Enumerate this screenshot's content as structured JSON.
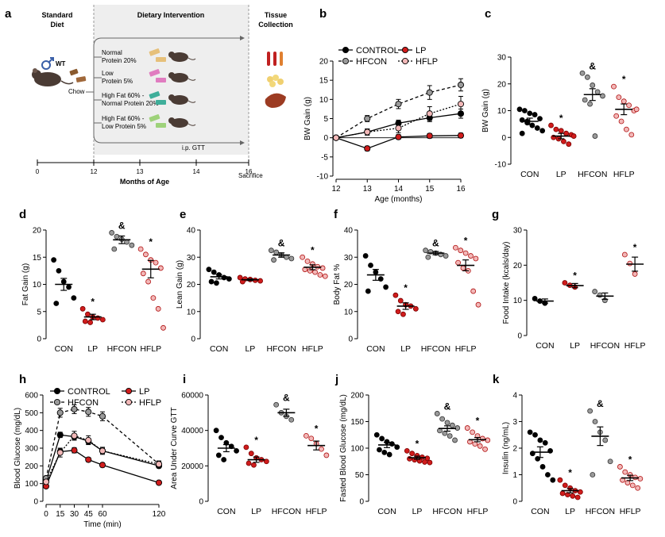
{
  "panel_letters": [
    "a",
    "b",
    "c",
    "d",
    "e",
    "f",
    "g",
    "h",
    "i",
    "j",
    "k"
  ],
  "schematic": {
    "header_standard": [
      "Standard",
      "Diet"
    ],
    "header_diet": "Dietary Intervention",
    "header_tissue": [
      "Tissue",
      "Collection"
    ],
    "wt_label": "WT",
    "chow_label": "Chow",
    "diets": [
      {
        "line1": "Normal",
        "line2": "Protein 20%",
        "color": "#e6c07a"
      },
      {
        "line1": "Low",
        "line2": "Protein 5%",
        "color": "#e07cc0"
      },
      {
        "line1": "High Fat  60% -",
        "line2": "Normal Protein 20%",
        "color": "#3fae9a"
      },
      {
        "line1": "High Fat 60% -",
        "line2": "Low Protein 5%",
        "color": "#9ed27a"
      }
    ],
    "gtt_label": "i.p. GTT",
    "timeline_ticks": [
      "0",
      "12",
      "13",
      "14",
      "16"
    ],
    "sacrifice_label": "Sacrifice",
    "axis_title": "Months of Age"
  },
  "colors": {
    "control": "#000000",
    "lp": "#d01c1c",
    "hfcon": "#9a9a9a",
    "hflp": "#f2b8b8"
  },
  "chart_data": [
    {
      "id": "b",
      "type": "line",
      "xlabel": "Age (months)",
      "ylabel": "BW Gain  (g)",
      "x": [
        12,
        13,
        14,
        15,
        16
      ],
      "xticks": [
        "12",
        "13",
        "14",
        "15",
        "16"
      ],
      "ylim": [
        -10,
        20
      ],
      "yticks": [
        "-10",
        "-5",
        "0",
        "5",
        "10",
        "15",
        "20"
      ],
      "legend": [
        "CONTROL",
        "LP",
        "HFCON",
        "HFLP"
      ],
      "series": [
        {
          "name": "CONTROL",
          "values": [
            0,
            1.5,
            3.8,
            5.2,
            6.3
          ],
          "err": [
            0.3,
            0.8,
            0.8,
            1.0,
            1.2
          ]
        },
        {
          "name": "LP",
          "values": [
            0,
            -2.8,
            0.2,
            0.5,
            0.6
          ],
          "err": [
            0.3,
            0.6,
            0.6,
            0.6,
            0.6
          ]
        },
        {
          "name": "HFCON",
          "values": [
            0,
            5.0,
            8.8,
            11.8,
            13.8
          ],
          "err": [
            0.3,
            0.8,
            1.2,
            1.8,
            1.6
          ]
        },
        {
          "name": "HFLP",
          "values": [
            0,
            1.5,
            2.5,
            6.3,
            8.8
          ],
          "err": [
            0.3,
            0.8,
            1.2,
            1.8,
            2.0
          ]
        }
      ]
    },
    {
      "id": "c",
      "type": "scatter",
      "ylabel": "BW Gain  (g)",
      "ylim": [
        -10,
        30
      ],
      "yticks": [
        "-10",
        "0",
        "10",
        "20",
        "30"
      ],
      "categories": [
        "CON",
        "LP",
        "HFCON",
        "HFLP"
      ],
      "means": [
        6.0,
        0.5,
        16.0,
        10.5
      ],
      "sem": [
        1.2,
        1.0,
        2.2,
        2.0
      ],
      "points": [
        [
          10.5,
          10.0,
          9.0,
          8.5,
          7.0,
          6.5,
          5.5,
          4.5,
          3.5,
          2.5,
          1.5,
          6.0
        ],
        [
          4.5,
          3.0,
          2.5,
          1.5,
          1.0,
          0.0,
          -0.5,
          -1.5,
          -2.5,
          0.5
        ],
        [
          24.0,
          22.5,
          19.5,
          17.0,
          15.5,
          14.0,
          12.5,
          0.5
        ],
        [
          19.0,
          15.0,
          13.5,
          12.0,
          10.0,
          8.0,
          6.0,
          3.0,
          1.0,
          10.5
        ]
      ],
      "sig": [
        "",
        "*",
        "&",
        "*"
      ]
    },
    {
      "id": "d",
      "type": "scatter",
      "ylabel": "Fat Gain  (g)",
      "ylim": [
        0,
        20
      ],
      "yticks": [
        "0",
        "5",
        "10",
        "15",
        "20"
      ],
      "categories": [
        "CON",
        "LP",
        "HFCON",
        "HFLP"
      ],
      "means": [
        10.0,
        4.0,
        18.2,
        12.8
      ],
      "sem": [
        1.1,
        0.5,
        0.7,
        1.6
      ],
      "points": [
        [
          14.5,
          12.5,
          10.5,
          9.5,
          7.5,
          6.5
        ],
        [
          5.5,
          4.5,
          4.0,
          3.8,
          3.5,
          3.2,
          3.0
        ],
        [
          19.5,
          18.8,
          18.3,
          17.8,
          17.2,
          16.5
        ],
        [
          16.5,
          15.5,
          14.5,
          14.0,
          13.0,
          12.0,
          10.5,
          7.5,
          5.5,
          2.0
        ]
      ],
      "sig": [
        "",
        "*",
        "&",
        "*"
      ]
    },
    {
      "id": "e",
      "type": "scatter",
      "ylabel": "Lean Gain  (g)",
      "ylim": [
        0,
        40
      ],
      "yticks": [
        "0",
        "10",
        "20",
        "30",
        "40"
      ],
      "categories": [
        "CON",
        "LP",
        "HFCON",
        "HFLP"
      ],
      "means": [
        22.8,
        21.7,
        30.8,
        26.3
      ],
      "sem": [
        0.8,
        0.3,
        0.8,
        0.9
      ],
      "points": [
        [
          25.5,
          24.5,
          23.5,
          22.5,
          22.0,
          21.0,
          20.5
        ],
        [
          22.5,
          22.0,
          21.8,
          21.5,
          21.3,
          21.0
        ],
        [
          32.5,
          31.8,
          30.8,
          30.0,
          29.5,
          29.0
        ],
        [
          30.0,
          28.5,
          27.5,
          26.5,
          26.0,
          25.5,
          25.0,
          24.5,
          23.5,
          23.0
        ]
      ],
      "sig": [
        "",
        "",
        "&",
        "*"
      ]
    },
    {
      "id": "f",
      "type": "scatter",
      "ylabel": "Body Fat %",
      "ylim": [
        0,
        40
      ],
      "yticks": [
        "0",
        "10",
        "20",
        "30",
        "40"
      ],
      "categories": [
        "CON",
        "LP",
        "HFCON",
        "HFLP"
      ],
      "means": [
        23.5,
        12.0,
        31.5,
        27.0
      ],
      "sem": [
        2.0,
        1.2,
        0.6,
        2.0
      ],
      "points": [
        [
          30.5,
          27.0,
          24.5,
          22.0,
          19.0,
          17.5
        ],
        [
          16.0,
          14.0,
          12.5,
          12.0,
          11.0,
          10.0,
          9.0
        ],
        [
          32.5,
          32.0,
          31.5,
          31.0,
          30.5,
          30.0
        ],
        [
          33.5,
          32.5,
          31.5,
          30.5,
          29.5,
          28.0,
          26.0,
          25.0,
          17.5,
          12.5
        ]
      ],
      "sig": [
        "",
        "*",
        "&",
        "*"
      ]
    },
    {
      "id": "g",
      "type": "scatter",
      "ylabel": "Food Intake (kcals/day)",
      "ylim": [
        0,
        30
      ],
      "yticks": [
        "0",
        "10",
        "20",
        "30"
      ],
      "categories": [
        "CON",
        "LP",
        "HFCON",
        "HFLP"
      ],
      "means": [
        9.8,
        14.2,
        11.2,
        20.3
      ],
      "sem": [
        0.6,
        0.6,
        0.9,
        2.0
      ],
      "points": [
        [
          10.5,
          9.8,
          9.2
        ],
        [
          15.0,
          14.3,
          13.8
        ],
        [
          12.5,
          11.5,
          10.0
        ],
        [
          23.0,
          20.5,
          17.5
        ]
      ],
      "sig": [
        "",
        "*",
        "",
        "*"
      ]
    },
    {
      "id": "h",
      "type": "line",
      "xlabel": "Time (min)",
      "ylabel": "Blood Glucose (mg/dL)",
      "x": [
        0,
        15,
        30,
        45,
        60,
        120
      ],
      "xticks": [
        "0",
        "15",
        "30",
        "45",
        "60",
        "120"
      ],
      "ylim": [
        0,
        600
      ],
      "yticks": [
        "0",
        "100",
        "200",
        "300",
        "400",
        "500",
        "600"
      ],
      "legend": [
        "CONTROL",
        "LP",
        "HFCON",
        "HFLP"
      ],
      "series": [
        {
          "name": "CONTROL",
          "values": [
            115,
            375,
            365,
            340,
            285,
            200
          ],
          "err": [
            10,
            15,
            15,
            15,
            15,
            12
          ]
        },
        {
          "name": "LP",
          "values": [
            85,
            280,
            288,
            235,
            205,
            105
          ],
          "err": [
            8,
            15,
            15,
            12,
            12,
            8
          ]
        },
        {
          "name": "HFCON",
          "values": [
            130,
            500,
            520,
            505,
            480,
            210
          ],
          "err": [
            12,
            25,
            25,
            25,
            25,
            18
          ]
        },
        {
          "name": "HFLP",
          "values": [
            110,
            275,
            370,
            345,
            285,
            210
          ],
          "err": [
            10,
            25,
            25,
            25,
            20,
            15
          ]
        }
      ]
    },
    {
      "id": "i",
      "type": "scatter",
      "ylabel": "Area Under Curve  GTT",
      "ylim": [
        0,
        60000
      ],
      "yticks": [
        "0",
        "20000",
        "40000",
        "60000"
      ],
      "categories": [
        "CON",
        "LP",
        "HFCON",
        "HFLP"
      ],
      "means": [
        30000,
        23500,
        50000,
        31500
      ],
      "sem": [
        2000,
        1500,
        2000,
        2500
      ],
      "points": [
        [
          40000,
          36000,
          33000,
          31000,
          28500,
          26000,
          23500
        ],
        [
          30500,
          27000,
          24500,
          23500,
          22500,
          21500,
          20500
        ],
        [
          54500,
          50000,
          48000,
          46000
        ],
        [
          37000,
          35500,
          32500,
          29500,
          26000
        ]
      ],
      "sig": [
        "",
        "*",
        "&",
        "*"
      ]
    },
    {
      "id": "j",
      "type": "scatter",
      "ylabel": "Fasted Blood Glucose (mg/dL)",
      "ylim": [
        0,
        200
      ],
      "yticks": [
        "0",
        "50",
        "100",
        "150",
        "200"
      ],
      "categories": [
        "CON",
        "LP",
        "HFCON",
        "HFLP"
      ],
      "means": [
        106,
        82,
        137,
        116
      ],
      "sem": [
        5,
        3,
        5,
        4
      ],
      "points": [
        [
          125,
          118,
          112,
          108,
          102,
          97,
          92,
          88
        ],
        [
          95,
          90,
          86,
          83,
          81,
          80,
          78,
          76,
          74,
          73
        ],
        [
          165,
          155,
          148,
          143,
          138,
          133,
          128,
          123,
          115
        ],
        [
          138,
          130,
          123,
          118,
          115,
          112,
          108,
          104,
          98
        ]
      ],
      "sig": [
        "",
        "*",
        "&",
        "*"
      ]
    },
    {
      "id": "k",
      "type": "scatter",
      "ylabel": "Insulin (ng/mL)",
      "ylim": [
        0,
        4
      ],
      "yticks": [
        "0",
        "1",
        "2",
        "3",
        "4"
      ],
      "categories": [
        "CON",
        "LP",
        "HFCON",
        "HFLP"
      ],
      "means": [
        1.85,
        0.4,
        2.45,
        0.88
      ],
      "sem": [
        0.2,
        0.08,
        0.35,
        0.1
      ],
      "points": [
        [
          2.6,
          2.5,
          2.3,
          2.2,
          1.9,
          1.8,
          1.6,
          1.3,
          1.0,
          0.8
        ],
        [
          0.8,
          0.6,
          0.5,
          0.4,
          0.35,
          0.3,
          0.25,
          0.2,
          0.15
        ],
        [
          3.4,
          3.0,
          2.6,
          2.3,
          1.5,
          1.0
        ],
        [
          1.3,
          1.1,
          1.0,
          0.9,
          0.85,
          0.8,
          0.7,
          0.6,
          0.5
        ]
      ],
      "sig": [
        "",
        "*",
        "&",
        "*"
      ]
    }
  ]
}
